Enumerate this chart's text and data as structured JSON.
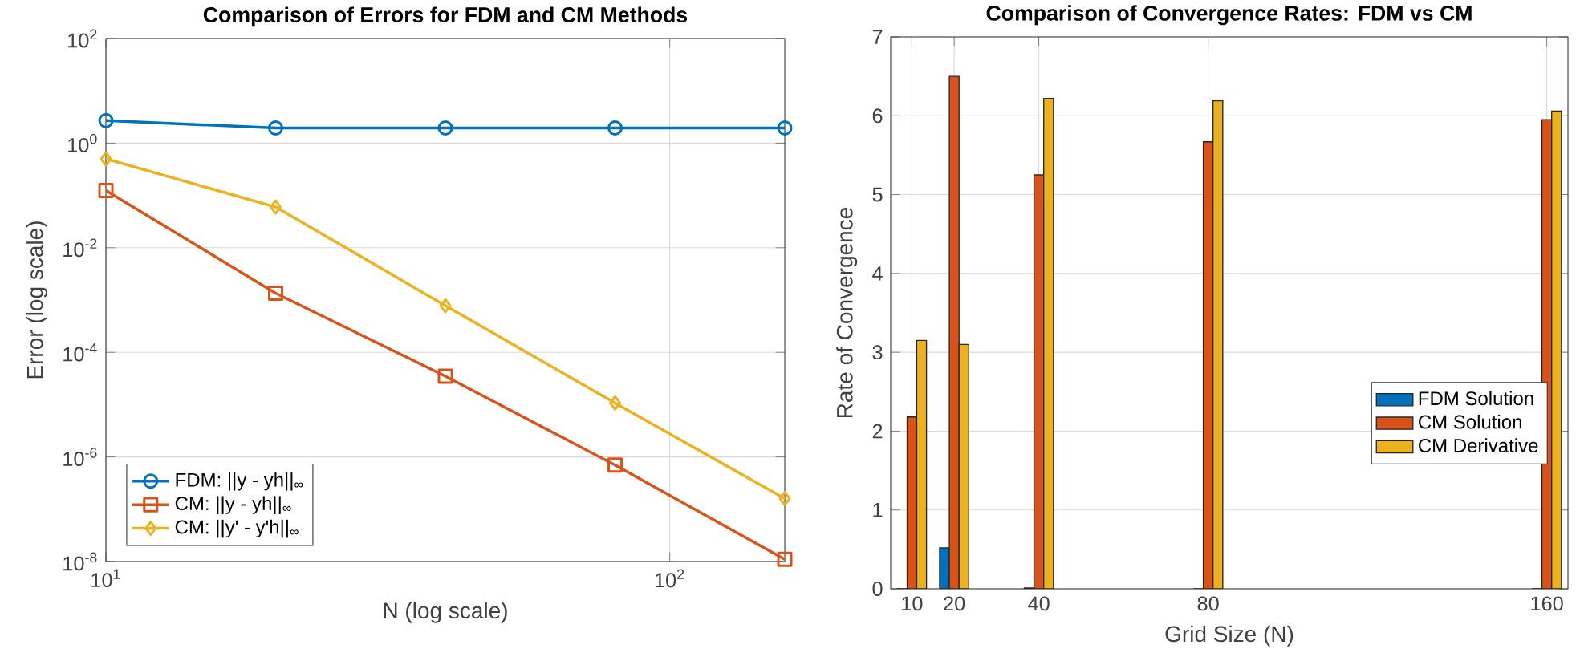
{
  "chart_data": [
    {
      "type": "line",
      "title": "**Comparison of Errors for FDM and CM Methods**",
      "xlabel": "N (log scale)",
      "ylabel": "Error (log scale)",
      "log": "xy",
      "grid": true,
      "legend": "bottom left",
      "x": [
        10,
        20,
        40,
        80,
        160
      ],
      "xlim": [
        10,
        160
      ],
      "ylim": [
        1e-08,
        100
      ],
      "xticks": [
        {
          "value": 10,
          "label": "10$^{1}$"
        },
        {
          "value": 100,
          "label": "10$^{2}$"
        }
      ],
      "yticks": [
        {
          "value": 1e-08,
          "label": "10$^{-8}$"
        },
        {
          "value": 1e-06,
          "label": "10$^{-6}$"
        },
        {
          "value": 0.0001,
          "label": "10$^{-4}$"
        },
        {
          "value": 0.01,
          "label": "10$^{-2}$"
        },
        {
          "value": 1,
          "label": "10$^{0}$"
        },
        {
          "value": 100,
          "label": "10$^{2}$"
        }
      ],
      "series": [
        {
          "name": "FDM: ||y - yh||$_{∞}$",
          "color": "#0072bd",
          "marker": "circle",
          "values": [
            2.7,
            1.95,
            1.95,
            1.95,
            1.95
          ]
        },
        {
          "name": "CM: ||y - yh||$_{∞}$",
          "color": "#d95319",
          "marker": "square",
          "values": [
            0.124,
            0.00135,
            3.5e-05,
            7e-07,
            1.1e-08
          ]
        },
        {
          "name": "CM: ||y' - y'h||$_{∞}$",
          "color": "#edb120",
          "marker": "diamond",
          "values": [
            0.5,
            0.06,
            0.00078,
            1.07e-05,
            1.6e-07
          ]
        }
      ]
    },
    {
      "type": "bar",
      "title": "**Comparison of Convergence Rates: FDM vs CM**",
      "xlabel": "Grid Size (N)",
      "ylabel": "Rate of Convergence",
      "grid": true,
      "legend": "right",
      "x": [
        10,
        20,
        40,
        80,
        160
      ],
      "xlim": [
        5,
        165
      ],
      "ylim": [
        0,
        7
      ],
      "xticks": [
        10,
        20,
        40,
        80,
        160
      ],
      "yticks": [
        0,
        1,
        2,
        3,
        4,
        5,
        6,
        7
      ],
      "series": [
        {
          "name": "FDM Solution",
          "color": "#0072bd",
          "values": [
            0,
            0.52,
            0.01,
            0,
            0
          ]
        },
        {
          "name": "CM Solution",
          "color": "#d95319",
          "values": [
            2.18,
            6.5,
            5.25,
            5.67,
            5.95
          ]
        },
        {
          "name": "CM Derivative",
          "color": "#edb120",
          "values": [
            3.15,
            3.1,
            6.22,
            6.19,
            6.06
          ]
        }
      ]
    }
  ]
}
